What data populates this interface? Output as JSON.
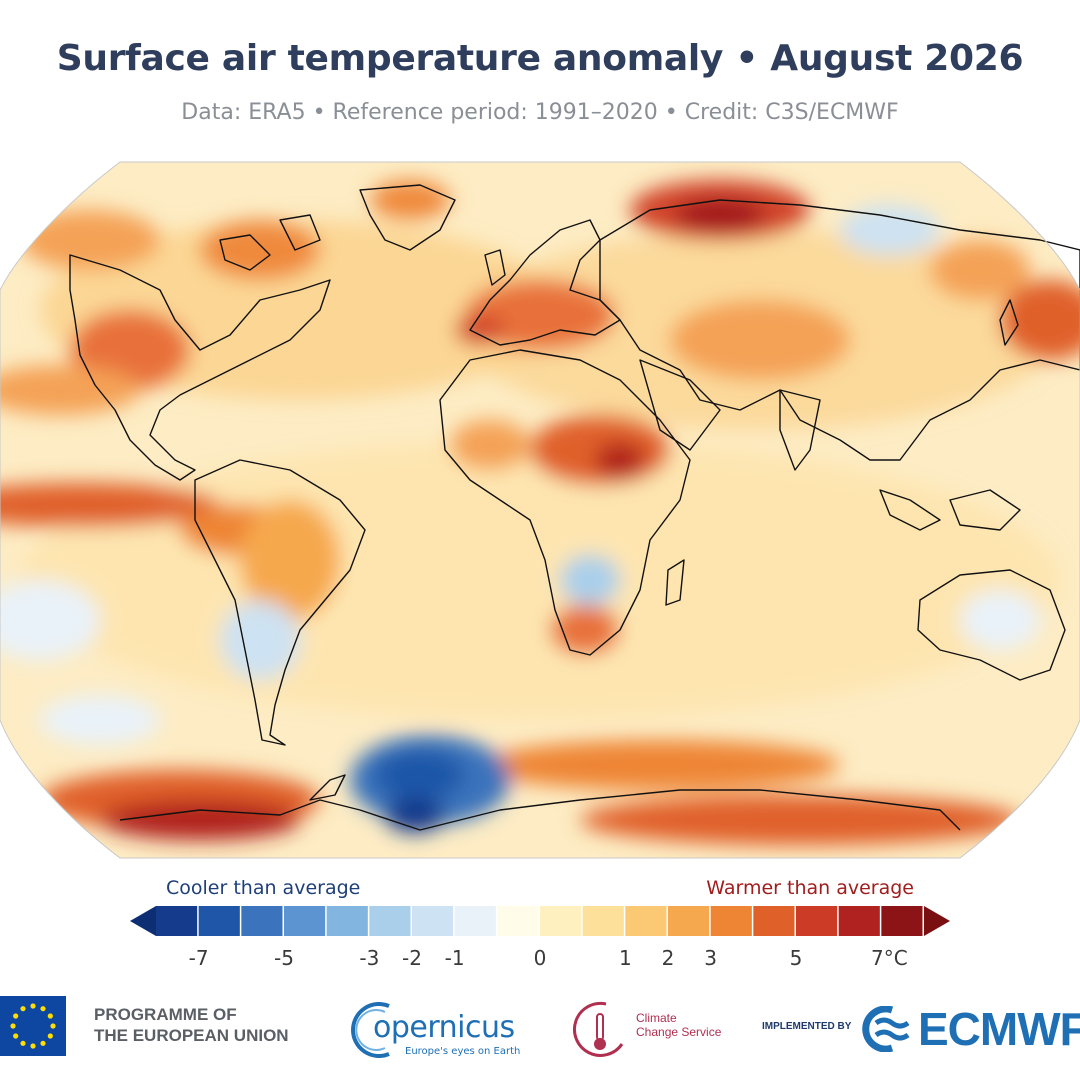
{
  "header": {
    "title": "Surface air temperature anomaly • August 2026",
    "subtitle": "Data: ERA5 • Reference period: 1991–2020 • Credit: C3S/ECMWF"
  },
  "legend": {
    "cool_label": "Cooler than average",
    "warm_label": "Warmer than average",
    "cool_color": "#1f3f7a",
    "warm_color": "#a01d1d",
    "ticks": [
      "-7",
      "-5",
      "-3",
      "-2",
      "-1",
      "0",
      "1",
      "2",
      "3",
      "5",
      "7°C"
    ],
    "bins": [
      "#143b8c",
      "#1f56a8",
      "#3b73bc",
      "#5b94d0",
      "#82b5e0",
      "#a9cfeb",
      "#cde2f2",
      "#e9f2f9",
      "#fffcea",
      "#fff0bf",
      "#fde19a",
      "#fbc974",
      "#f6a84e",
      "#ee8535",
      "#e0602a",
      "#cb3b25",
      "#b0221f",
      "#8c1416"
    ],
    "extend_low_color": "#0e2e74",
    "extend_high_color": "#7a0f12"
  },
  "footer": {
    "eu_line1": "PROGRAMME OF",
    "eu_line2": "THE EUROPEAN UNION",
    "copernicus_name": "opernicus",
    "copernicus_tagline": "Europe's eyes on Earth",
    "c3s_line1": "Climate",
    "c3s_line2": "Change Service",
    "implemented_by": "IMPLEMENTED BY",
    "ecmwf": "ECMWF"
  },
  "map": {
    "ocean_base_color": "#fdecc4",
    "land_outline_color": "#111111"
  }
}
